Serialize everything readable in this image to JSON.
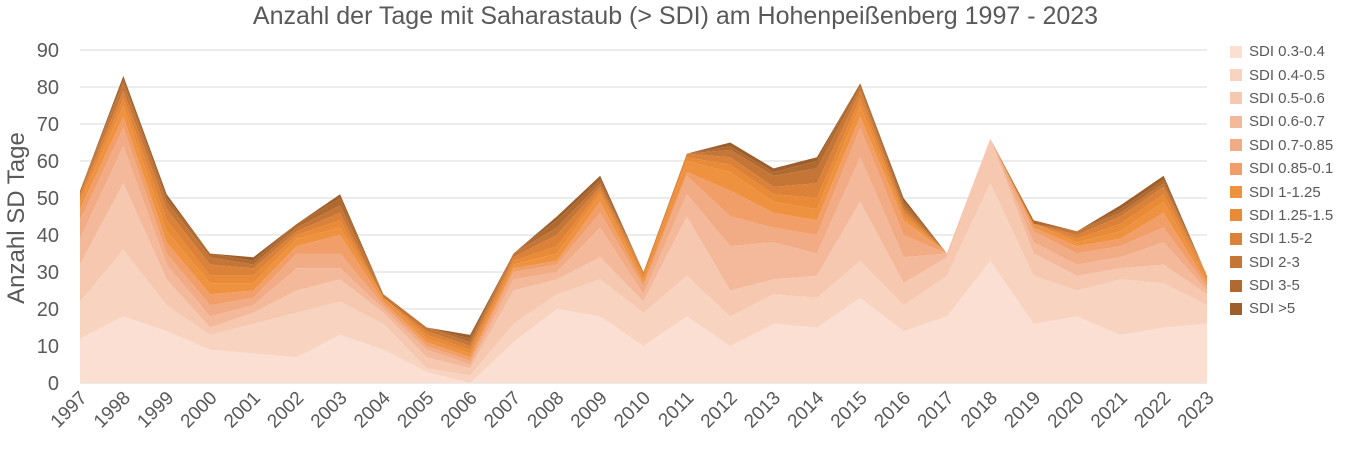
{
  "chart_data": {
    "type": "area",
    "stacked": true,
    "title": "Anzahl der Tage mit Saharastaub (> SDI) am Hohenpeißenberg 1997 - 2023",
    "ylabel": "Anzahl SD Tage",
    "xlabel": "",
    "ylim": [
      0,
      90
    ],
    "yticks": [
      "0",
      "10",
      "20",
      "30",
      "40",
      "50",
      "60",
      "70",
      "80",
      "90"
    ],
    "grid": true,
    "legend_position": "right",
    "categories": [
      "1997",
      "1998",
      "1999",
      "2000",
      "2001",
      "2002",
      "2003",
      "2004",
      "2005",
      "2006",
      "2007",
      "2008",
      "2009",
      "2010",
      "2011",
      "2012",
      "2013",
      "2014",
      "2015",
      "2016",
      "2017",
      "2018",
      "2019",
      "2020",
      "2021",
      "2022",
      "2023"
    ],
    "series": [
      {
        "name": "SDI 0.3-0.4",
        "color": "#fadfd2",
        "values": [
          12,
          18,
          14,
          9,
          8,
          7,
          13,
          9,
          3,
          0,
          11,
          20,
          18,
          10,
          18,
          10,
          16,
          15,
          23,
          14,
          18,
          33,
          16,
          18,
          13,
          15,
          16
        ]
      },
      {
        "name": "SDI 0.4-0.5",
        "color": "#f8d3c0",
        "values": [
          10,
          18,
          7,
          4,
          8,
          12,
          9,
          7,
          1,
          2,
          5,
          4,
          10,
          9,
          11,
          8,
          8,
          8,
          10,
          7,
          11,
          21,
          13,
          7,
          15,
          12,
          5
        ]
      },
      {
        "name": "SDI 0.5-0.6",
        "color": "#f6c8b0",
        "values": [
          10,
          18,
          7,
          2,
          3,
          6,
          6,
          3,
          3,
          2,
          9,
          4,
          6,
          3,
          16,
          7,
          4,
          6,
          16,
          6,
          5,
          12,
          6,
          4,
          3,
          5,
          3
        ]
      },
      {
        "name": "SDI 0.6-0.7",
        "color": "#f4b99a",
        "values": [
          7,
          10,
          4,
          3,
          2,
          6,
          3,
          1,
          2,
          1,
          3,
          2,
          8,
          2,
          6,
          12,
          10,
          6,
          12,
          7,
          1,
          0,
          3,
          3,
          3,
          6,
          1
        ]
      },
      {
        "name": "SDI 0.7-0.85",
        "color": "#f2ac85",
        "values": [
          5,
          5,
          3,
          3,
          2,
          4,
          4,
          1,
          1,
          1,
          2,
          2,
          4,
          2,
          5,
          8,
          4,
          5,
          8,
          6,
          0,
          0,
          3,
          3,
          3,
          4,
          1
        ]
      },
      {
        "name": "SDI 0.85-0.1",
        "color": "#f19e69",
        "values": [
          3,
          3,
          3,
          3,
          2,
          2,
          5,
          1,
          1,
          1,
          1,
          1,
          3,
          1,
          1,
          7,
          4,
          4,
          3,
          4,
          0,
          0,
          1,
          2,
          2,
          4,
          1
        ]
      },
      {
        "name": "SDI 1-1.25",
        "color": "#ee9240",
        "values": [
          2,
          3,
          3,
          3,
          2,
          2,
          2,
          1,
          1,
          1,
          1,
          2,
          2,
          1,
          3,
          5,
          3,
          3,
          3,
          1,
          0,
          0,
          1,
          1,
          2,
          3,
          1
        ]
      },
      {
        "name": "SDI 1.25-1.5",
        "color": "#e98a36",
        "values": [
          1,
          2,
          3,
          2,
          2,
          1,
          2,
          0,
          1,
          1,
          1,
          2,
          1,
          1,
          1,
          2,
          2,
          3,
          2,
          1,
          0,
          0,
          0,
          1,
          2,
          2,
          1
        ]
      },
      {
        "name": "SDI 1.5-2",
        "color": "#dc8138",
        "values": [
          1,
          2,
          3,
          3,
          2,
          1,
          2,
          0,
          1,
          1,
          1,
          3,
          1,
          1,
          1,
          2,
          2,
          4,
          2,
          1,
          0,
          0,
          0,
          1,
          2,
          2,
          0
        ]
      },
      {
        "name": "SDI 2-3",
        "color": "#c57637",
        "values": [
          1,
          2,
          2,
          2,
          1,
          1,
          2,
          1,
          1,
          1,
          1,
          2,
          1,
          0,
          0,
          2,
          3,
          4,
          1,
          1,
          0,
          0,
          0,
          1,
          1,
          1,
          0
        ]
      },
      {
        "name": "SDI 3-5",
        "color": "#b06a30",
        "values": [
          0,
          1,
          1,
          1,
          1,
          1,
          2,
          0,
          0,
          1,
          0,
          2,
          1,
          0,
          0,
          1,
          1,
          2,
          1,
          1,
          0,
          0,
          1,
          0,
          1,
          1,
          0
        ]
      },
      {
        "name": "SDI >5",
        "color": "#9e5e2b",
        "values": [
          0,
          1,
          1,
          0,
          1,
          0,
          1,
          0,
          0,
          1,
          0,
          1,
          1,
          0,
          0,
          1,
          1,
          1,
          0,
          1,
          0,
          0,
          0,
          0,
          1,
          1,
          0
        ]
      }
    ]
  }
}
